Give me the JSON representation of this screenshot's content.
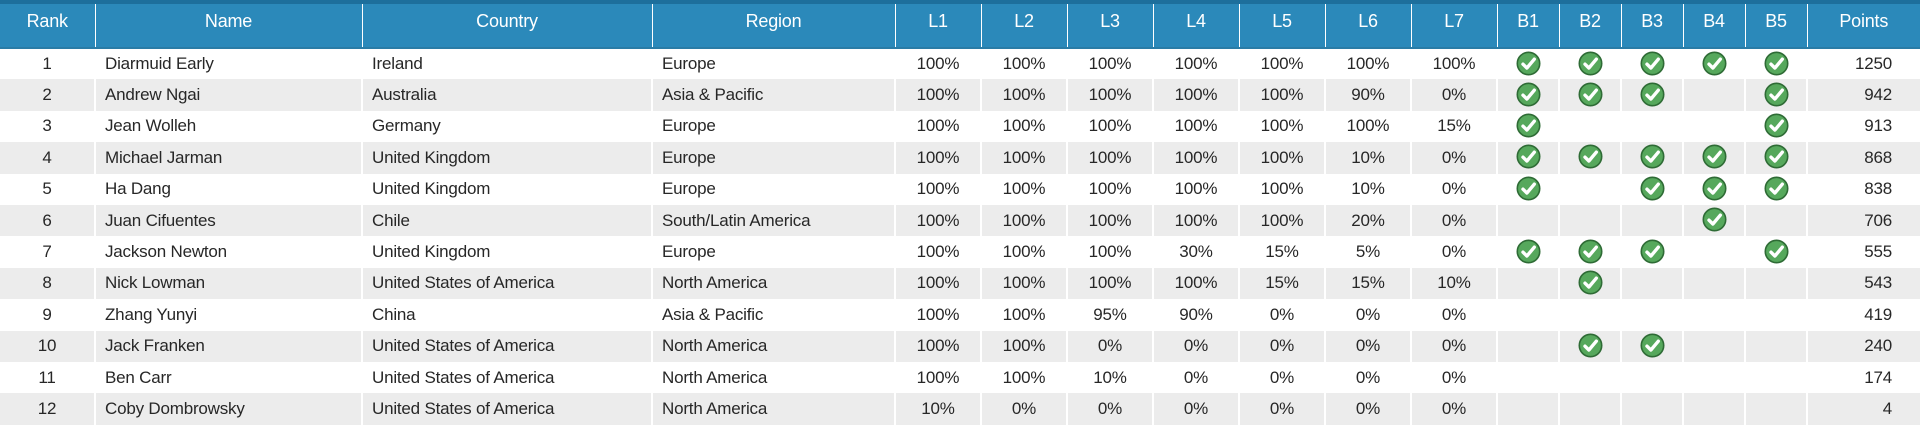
{
  "table": {
    "columns": [
      "Rank",
      "Name",
      "Country",
      "Region",
      "L1",
      "L2",
      "L3",
      "L4",
      "L5",
      "L6",
      "L7",
      "B1",
      "B2",
      "B3",
      "B4",
      "B5",
      "Points"
    ],
    "rows": [
      {
        "rank": "1",
        "name": "Diarmuid Early",
        "country": "Ireland",
        "region": "Europe",
        "levels": [
          "100%",
          "100%",
          "100%",
          "100%",
          "100%",
          "100%",
          "100%"
        ],
        "badges": [
          true,
          true,
          true,
          true,
          true
        ],
        "points": "1250"
      },
      {
        "rank": "2",
        "name": "Andrew Ngai",
        "country": "Australia",
        "region": "Asia & Pacific",
        "levels": [
          "100%",
          "100%",
          "100%",
          "100%",
          "100%",
          "90%",
          "0%"
        ],
        "badges": [
          true,
          true,
          true,
          false,
          true
        ],
        "points": "942"
      },
      {
        "rank": "3",
        "name": "Jean Wolleh",
        "country": "Germany",
        "region": "Europe",
        "levels": [
          "100%",
          "100%",
          "100%",
          "100%",
          "100%",
          "100%",
          "15%"
        ],
        "badges": [
          true,
          false,
          false,
          false,
          true
        ],
        "points": "913"
      },
      {
        "rank": "4",
        "name": "Michael Jarman",
        "country": "United Kingdom",
        "region": "Europe",
        "levels": [
          "100%",
          "100%",
          "100%",
          "100%",
          "100%",
          "10%",
          "0%"
        ],
        "badges": [
          true,
          true,
          true,
          true,
          true
        ],
        "points": "868"
      },
      {
        "rank": "5",
        "name": "Ha Dang",
        "country": "United Kingdom",
        "region": "Europe",
        "levels": [
          "100%",
          "100%",
          "100%",
          "100%",
          "100%",
          "10%",
          "0%"
        ],
        "badges": [
          true,
          false,
          true,
          true,
          true
        ],
        "points": "838"
      },
      {
        "rank": "6",
        "name": "Juan Cifuentes",
        "country": "Chile",
        "region": "South/Latin America",
        "levels": [
          "100%",
          "100%",
          "100%",
          "100%",
          "100%",
          "20%",
          "0%"
        ],
        "badges": [
          false,
          false,
          false,
          true,
          false
        ],
        "points": "706"
      },
      {
        "rank": "7",
        "name": "Jackson Newton",
        "country": "United Kingdom",
        "region": "Europe",
        "levels": [
          "100%",
          "100%",
          "100%",
          "30%",
          "15%",
          "5%",
          "0%"
        ],
        "badges": [
          true,
          true,
          true,
          false,
          true
        ],
        "points": "555"
      },
      {
        "rank": "8",
        "name": "Nick Lowman",
        "country": "United States of America",
        "region": "North America",
        "levels": [
          "100%",
          "100%",
          "100%",
          "100%",
          "15%",
          "15%",
          "10%"
        ],
        "badges": [
          false,
          true,
          false,
          false,
          false
        ],
        "points": "543"
      },
      {
        "rank": "9",
        "name": "Zhang Yunyi",
        "country": "China",
        "region": "Asia & Pacific",
        "levels": [
          "100%",
          "100%",
          "95%",
          "90%",
          "0%",
          "0%",
          "0%"
        ],
        "badges": [
          false,
          false,
          false,
          false,
          false
        ],
        "points": "419"
      },
      {
        "rank": "10",
        "name": "Jack Franken",
        "country": "United States of America",
        "region": "North America",
        "levels": [
          "100%",
          "100%",
          "0%",
          "0%",
          "0%",
          "0%",
          "0%"
        ],
        "badges": [
          false,
          true,
          true,
          false,
          false
        ],
        "points": "240"
      },
      {
        "rank": "11",
        "name": "Ben Carr",
        "country": "United States of America",
        "region": "North America",
        "levels": [
          "100%",
          "100%",
          "10%",
          "0%",
          "0%",
          "0%",
          "0%"
        ],
        "badges": [
          false,
          false,
          false,
          false,
          false
        ],
        "points": "174"
      },
      {
        "rank": "12",
        "name": "Coby Dombrowsky",
        "country": "United States of America",
        "region": "North America",
        "levels": [
          "10%",
          "0%",
          "0%",
          "0%",
          "0%",
          "0%",
          "0%"
        ],
        "badges": [
          false,
          false,
          false,
          false,
          false
        ],
        "points": "4"
      }
    ]
  },
  "icons": {
    "badge_earned": "check-icon"
  },
  "colors": {
    "header_bg": "#2b89ba",
    "header_top_border": "#1d6f9c",
    "header_bottom_border": "#2a7ca6",
    "row_stripe": "#ececec",
    "check_green": "#56a85c",
    "check_ring": "#2e6b35",
    "text": "#272727"
  }
}
